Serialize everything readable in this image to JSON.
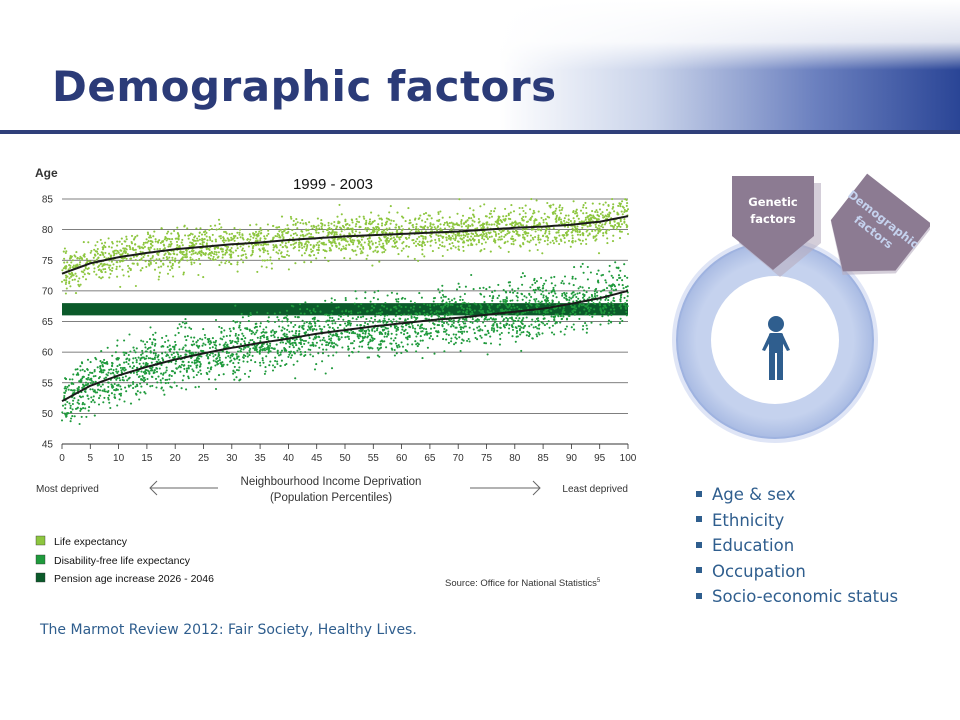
{
  "slide": {
    "title": "Demographic factors",
    "citation": "The Marmot Review 2012: Fair Society, Healthy Lives."
  },
  "colors": {
    "title": "#2b3b78",
    "header_rule": "#2f3f7a",
    "body_text": "#2f5e8e",
    "life_expectancy": "#8dc63f",
    "disability_free": "#1f9a3c",
    "pension_band": "#0b5a2a",
    "trend_line": "#1a1a1a",
    "ring": "#c5d2ee",
    "pentagon": "#8c7b92"
  },
  "chart_data": {
    "type": "scatter",
    "title": "1999 - 2003",
    "ylabel": "Age",
    "xlabel": "Neighbourhood Income Deprivation (Population Percentiles)",
    "xlabel_lines": [
      "Neighbourhood Income Deprivation",
      "(Population Percentiles)"
    ],
    "x_left_note": "Most deprived",
    "x_right_note": "Least deprived",
    "source": "Source: Office for National Statistics",
    "source_sup": "5",
    "xlim": [
      0,
      100
    ],
    "ylim": [
      45,
      85
    ],
    "xticks": [
      0,
      5,
      10,
      15,
      20,
      25,
      30,
      35,
      40,
      45,
      50,
      55,
      60,
      65,
      70,
      75,
      80,
      85,
      90,
      95,
      100
    ],
    "yticks": [
      45,
      50,
      55,
      60,
      65,
      70,
      75,
      80,
      85
    ],
    "grid": true,
    "legend_position": "bottom-left",
    "series": [
      {
        "name": "Life expectancy",
        "color": "#8dc63f",
        "trend": [
          [
            0,
            72.8
          ],
          [
            5,
            74.5
          ],
          [
            10,
            75.5
          ],
          [
            15,
            76.2
          ],
          [
            20,
            76.8
          ],
          [
            25,
            77.2
          ],
          [
            30,
            77.6
          ],
          [
            35,
            77.9
          ],
          [
            40,
            78.3
          ],
          [
            45,
            78.6
          ],
          [
            50,
            78.9
          ],
          [
            55,
            79.1
          ],
          [
            60,
            79.3
          ],
          [
            65,
            79.5
          ],
          [
            70,
            79.7
          ],
          [
            75,
            80.0
          ],
          [
            80,
            80.3
          ],
          [
            85,
            80.5
          ],
          [
            90,
            80.8
          ],
          [
            95,
            81.3
          ],
          [
            100,
            82.2
          ]
        ],
        "spread": 1.7
      },
      {
        "name": "Disability-free life expectancy",
        "color": "#1f9a3c",
        "trend": [
          [
            0,
            52.0
          ],
          [
            5,
            54.5
          ],
          [
            10,
            56.2
          ],
          [
            15,
            57.6
          ],
          [
            20,
            58.8
          ],
          [
            25,
            59.8
          ],
          [
            30,
            60.7
          ],
          [
            35,
            61.5
          ],
          [
            40,
            62.2
          ],
          [
            45,
            63.0
          ],
          [
            50,
            63.6
          ],
          [
            55,
            64.2
          ],
          [
            60,
            64.7
          ],
          [
            65,
            65.2
          ],
          [
            70,
            65.6
          ],
          [
            75,
            66.1
          ],
          [
            80,
            66.6
          ],
          [
            85,
            67.1
          ],
          [
            90,
            67.9
          ],
          [
            95,
            68.8
          ],
          [
            100,
            70.0
          ]
        ],
        "spread": 2.3
      },
      {
        "name": "Pension age increase 2026 - 2046",
        "color": "#0b5a2a",
        "band": [
          66,
          68
        ]
      }
    ]
  },
  "diagram": {
    "pentagons": [
      {
        "label_lines": [
          "Genetic",
          "factors"
        ]
      },
      {
        "label_lines": [
          "Demographic",
          "factors"
        ]
      }
    ],
    "center_icon": "person-icon"
  },
  "factors": {
    "items": [
      "Age & sex",
      "Ethnicity",
      "Education",
      "Occupation",
      "Socio-economic  status"
    ]
  }
}
